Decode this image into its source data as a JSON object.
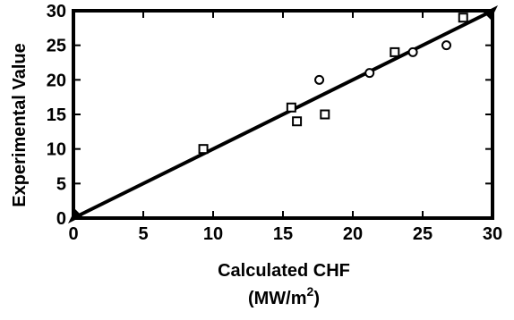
{
  "chart_data": {
    "type": "scatter",
    "title": "",
    "xlabel": "Calculated CHF",
    "xlabel_unit_base": "(MW/m",
    "xlabel_unit_sup": "2",
    "xlabel_unit_close": ")",
    "ylabel": "Experimental Value",
    "xlim": [
      0,
      30
    ],
    "ylim": [
      0,
      30
    ],
    "x_ticks": [
      "0",
      "5",
      "10",
      "15",
      "20",
      "25",
      "30"
    ],
    "y_ticks": [
      "0",
      "5",
      "10",
      "15",
      "20",
      "25",
      "30"
    ],
    "grid": false,
    "series": [
      {
        "marker": "square",
        "points": [
          {
            "x": 9.3,
            "y": 10.0
          },
          {
            "x": 15.6,
            "y": 16.0
          },
          {
            "x": 16.0,
            "y": 14.0
          },
          {
            "x": 18.0,
            "y": 15.0
          },
          {
            "x": 23.0,
            "y": 24.0
          },
          {
            "x": 27.9,
            "y": 29.0
          }
        ]
      },
      {
        "marker": "circle",
        "points": [
          {
            "x": 17.6,
            "y": 20.0
          },
          {
            "x": 21.2,
            "y": 21.0
          },
          {
            "x": 24.3,
            "y": 24.0
          },
          {
            "x": 26.7,
            "y": 25.0
          }
        ]
      }
    ],
    "reference_line": {
      "from": [
        0,
        0
      ],
      "to": [
        30,
        30
      ]
    }
  }
}
